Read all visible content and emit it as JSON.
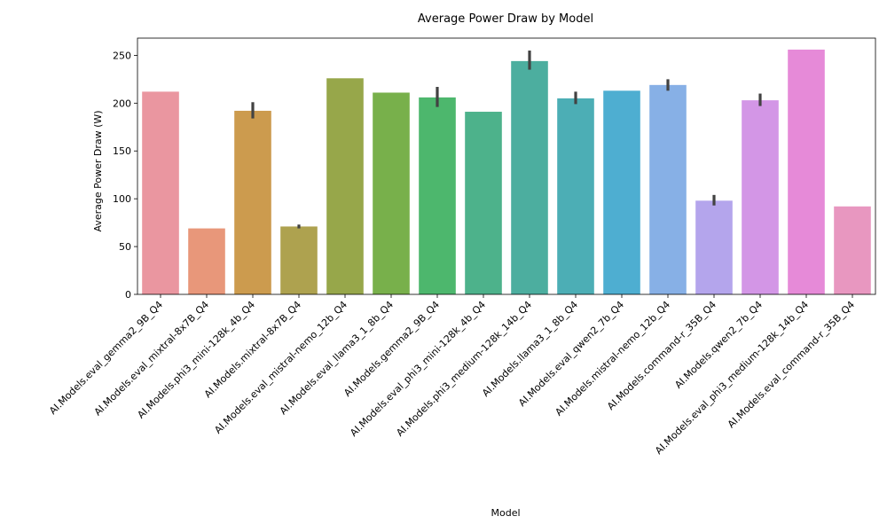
{
  "chart_data": {
    "type": "bar",
    "title": "Average Power Draw by Model",
    "xlabel": "Model",
    "ylabel": "Average Power Draw (W)",
    "ylim": [
      0,
      268
    ],
    "yticks": [
      0,
      50,
      100,
      150,
      200,
      250
    ],
    "grid": false,
    "legend": "none",
    "categories": [
      "AI.Models.eval_gemma2_9B_Q4",
      "AI.Models.eval_mixtral-8x7B_Q4",
      "AI.Models.phi3_mini-128k_4b_Q4",
      "AI.Models.mixtral-8x7B_Q4",
      "AI.Models.eval_mistral-nemo_12b_Q4",
      "AI.Models.eval_llama3_1_8b_Q4",
      "AI.Models.gemma2_9B_Q4",
      "AI.Models.eval_phi3_mini-128k_4b_Q4",
      "AI.Models.phi3_medium-128k_14b_Q4",
      "AI.Models.llama3_1_8b_Q4",
      "AI.Models.eval_qwen2_7b_Q4",
      "AI.Models.mistral-nemo_12b_Q4",
      "AI.Models.command-r_35B_Q4",
      "AI.Models.qwen2_7b_Q4",
      "AI.Models.eval_phi3_medium-128k_14b_Q4",
      "AI.Models.eval_command-r_35B_Q4"
    ],
    "values": [
      212,
      69,
      192,
      71,
      226,
      211,
      206,
      191,
      244,
      205,
      213,
      219,
      98,
      203,
      256,
      92
    ],
    "error_bars": [
      null,
      null,
      [
        184,
        201
      ],
      [
        69,
        73
      ],
      null,
      null,
      [
        196,
        217
      ],
      null,
      [
        235,
        255
      ],
      [
        199,
        212
      ],
      null,
      [
        213,
        225
      ],
      [
        93,
        104
      ],
      [
        197,
        210
      ],
      null,
      null
    ],
    "colors": [
      "#EA96A0",
      "#E8977A",
      "#CC9B4E",
      "#AEA24F",
      "#97A74A",
      "#78B04B",
      "#4DB76D",
      "#4DB28B",
      "#4CAE9F",
      "#4CAEB5",
      "#4EAED1",
      "#87B0E6",
      "#B4A5EC",
      "#D396E6",
      "#E68AD8",
      "#E897C0"
    ]
  }
}
